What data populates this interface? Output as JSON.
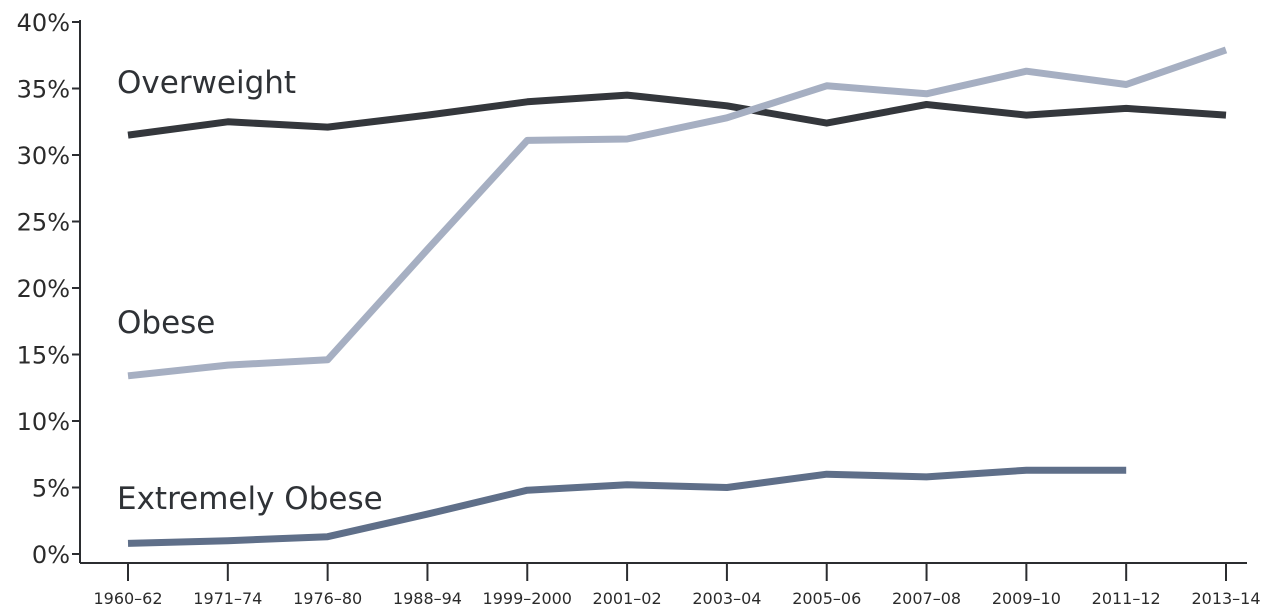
{
  "chart_data": {
    "type": "line",
    "categories": [
      "1960–62",
      "1971–74",
      "1976–80",
      "1988–94",
      "1999–2000",
      "2001–02",
      "2003–04",
      "2005–06",
      "2007–08",
      "2009–10",
      "2011–12",
      "2013–14"
    ],
    "y_ticks": [
      "0%",
      "5%",
      "10%",
      "15%",
      "20%",
      "25%",
      "30%",
      "35%",
      "40%"
    ],
    "ylim": [
      0,
      40
    ],
    "grid": false,
    "legend": "inline labels",
    "series": [
      {
        "name": "Overweight",
        "color": "#34373c",
        "values": [
          31.5,
          32.5,
          32.1,
          33.0,
          34.0,
          34.5,
          33.7,
          32.4,
          33.8,
          33.0,
          33.5,
          33.0
        ]
      },
      {
        "name": "Obese",
        "color": "#a6afc2",
        "values": [
          13.4,
          14.2,
          14.6,
          22.9,
          31.1,
          31.2,
          32.8,
          35.2,
          34.6,
          36.3,
          35.3,
          37.9
        ]
      },
      {
        "name": "Extremely Obese",
        "color": "#5f6f89",
        "values": [
          0.8,
          1.0,
          1.3,
          3.0,
          4.8,
          5.2,
          5.0,
          6.0,
          5.8,
          6.3,
          6.3,
          null
        ]
      }
    ]
  }
}
